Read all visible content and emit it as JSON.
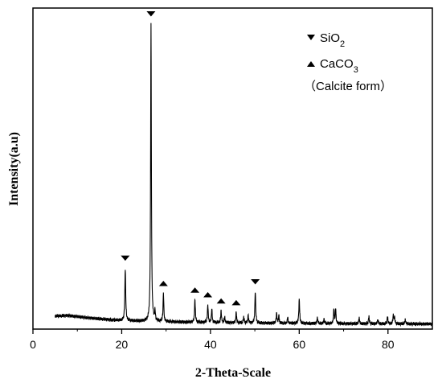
{
  "chart_data": {
    "type": "line",
    "title": "",
    "xlabel": "2-Theta-Scale",
    "ylabel": "Intensity(a.u)",
    "xlim": [
      0,
      90
    ],
    "ylim": [
      0,
      1.0
    ],
    "x_ticks": [
      0,
      20,
      40,
      60,
      80
    ],
    "y_ticks": [],
    "grid": false,
    "legend_position": "top-right",
    "legend": [
      {
        "marker": "down-triangle",
        "label": "SiO",
        "sub": "2",
        "suffix": ""
      },
      {
        "marker": "up-triangle",
        "label": "CaCO",
        "sub": "3",
        "suffix": ""
      },
      {
        "marker": "none",
        "label": "（Calcite form）",
        "sub": "",
        "suffix": ""
      }
    ],
    "baseline": [
      [
        5,
        0.035
      ],
      [
        8,
        0.037
      ],
      [
        12,
        0.03
      ],
      [
        18,
        0.022
      ],
      [
        25,
        0.018
      ],
      [
        35,
        0.015
      ],
      [
        50,
        0.012
      ],
      [
        70,
        0.01
      ],
      [
        90,
        0.009
      ]
    ],
    "peaks": [
      {
        "x": 20.8,
        "y": 0.175,
        "w": 0.22
      },
      {
        "x": 26.6,
        "y": 0.99,
        "w": 0.2
      },
      {
        "x": 27.5,
        "y": 0.03,
        "w": 0.2
      },
      {
        "x": 29.4,
        "y": 0.095,
        "w": 0.2
      },
      {
        "x": 36.5,
        "y": 0.075,
        "w": 0.22
      },
      {
        "x": 39.4,
        "y": 0.06,
        "w": 0.2
      },
      {
        "x": 40.3,
        "y": 0.045,
        "w": 0.2
      },
      {
        "x": 42.4,
        "y": 0.04,
        "w": 0.2
      },
      {
        "x": 43.2,
        "y": 0.02,
        "w": 0.2
      },
      {
        "x": 45.8,
        "y": 0.035,
        "w": 0.2
      },
      {
        "x": 47.5,
        "y": 0.02,
        "w": 0.2
      },
      {
        "x": 48.5,
        "y": 0.025,
        "w": 0.2
      },
      {
        "x": 50.1,
        "y": 0.105,
        "w": 0.22
      },
      {
        "x": 54.9,
        "y": 0.035,
        "w": 0.2
      },
      {
        "x": 55.4,
        "y": 0.025,
        "w": 0.2
      },
      {
        "x": 57.4,
        "y": 0.02,
        "w": 0.2
      },
      {
        "x": 60.0,
        "y": 0.08,
        "w": 0.22
      },
      {
        "x": 64.1,
        "y": 0.02,
        "w": 0.2
      },
      {
        "x": 65.6,
        "y": 0.015,
        "w": 0.2
      },
      {
        "x": 67.8,
        "y": 0.045,
        "w": 0.2
      },
      {
        "x": 68.2,
        "y": 0.05,
        "w": 0.2
      },
      {
        "x": 73.5,
        "y": 0.02,
        "w": 0.2
      },
      {
        "x": 75.7,
        "y": 0.025,
        "w": 0.2
      },
      {
        "x": 77.7,
        "y": 0.015,
        "w": 0.2
      },
      {
        "x": 79.9,
        "y": 0.025,
        "w": 0.2
      },
      {
        "x": 81.2,
        "y": 0.03,
        "w": 0.2
      },
      {
        "x": 81.5,
        "y": 0.02,
        "w": 0.2
      },
      {
        "x": 83.9,
        "y": 0.015,
        "w": 0.2
      }
    ],
    "markers": [
      {
        "type": "down",
        "x": 20.8
      },
      {
        "type": "down",
        "x": 26.6
      },
      {
        "type": "up",
        "x": 29.4
      },
      {
        "type": "up",
        "x": 36.5
      },
      {
        "type": "up",
        "x": 39.4
      },
      {
        "type": "up",
        "x": 42.4
      },
      {
        "type": "up",
        "x": 45.8
      },
      {
        "type": "down",
        "x": 50.1
      }
    ]
  }
}
